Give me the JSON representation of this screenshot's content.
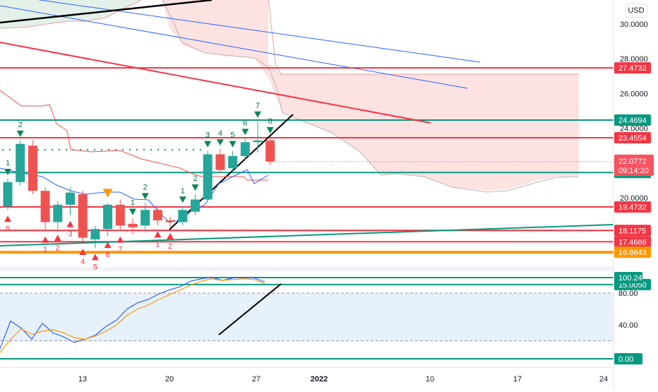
{
  "currency_label": "USD",
  "colors": {
    "green_line": "#089981",
    "red_line": "#f23645",
    "orange_line": "#ff9800",
    "blue_line": "#2962ff",
    "bull": "#26a69a",
    "bear": "#ef5350",
    "cloud": "#fde2e2",
    "cloud_green": "#e3f1e9",
    "rsi_band": "#e6f1fb"
  },
  "chart_data": [
    {
      "type": "candlestick",
      "title": "",
      "ylim": [
        14.85,
        31.2
      ],
      "price_ticks": [
        "30.0000",
        "28.0000",
        "26.0000",
        "24.0000",
        "20.0000"
      ],
      "x_ticks": [
        "13",
        "20",
        "27",
        "2022",
        "10",
        "17",
        "24"
      ],
      "price_tags": [
        {
          "value": "27.4732",
          "color": "red"
        },
        {
          "value": "24.4694",
          "color": "green"
        },
        {
          "value": "23.4554",
          "color": "red"
        },
        {
          "value": "21.4552",
          "color": "green"
        },
        {
          "value": "19.4732",
          "color": "red"
        },
        {
          "value": "18.1175",
          "color": "red"
        },
        {
          "value": "17.4686",
          "color": "red"
        },
        {
          "value": "16.8643",
          "color": "orange"
        },
        {
          "value": "15.0050",
          "color": "green"
        }
      ],
      "current_price": {
        "value": "22.0772",
        "countdown": "09:14:20"
      },
      "candles": [
        {
          "date": "Dec 07",
          "open": 19.5,
          "high": 21.1,
          "low": 19.3,
          "close": 20.9
        },
        {
          "date": "Dec 08",
          "open": 20.9,
          "high": 23.3,
          "low": 20.7,
          "close": 23.1
        },
        {
          "date": "Dec 09",
          "open": 23.0,
          "high": 23.3,
          "low": 20.2,
          "close": 20.4
        },
        {
          "date": "Dec 10",
          "open": 20.4,
          "high": 20.6,
          "low": 18.1,
          "close": 18.6
        },
        {
          "date": "Dec 11",
          "open": 18.6,
          "high": 19.8,
          "low": 18.2,
          "close": 19.6
        },
        {
          "date": "Dec 12",
          "open": 19.6,
          "high": 20.6,
          "low": 19.0,
          "close": 20.3
        },
        {
          "date": "Dec 13",
          "open": 20.2,
          "high": 20.4,
          "low": 17.4,
          "close": 17.7
        },
        {
          "date": "Dec 14",
          "open": 17.6,
          "high": 18.4,
          "low": 17.1,
          "close": 18.2
        },
        {
          "date": "Dec 15",
          "open": 18.2,
          "high": 19.7,
          "low": 17.8,
          "close": 19.6
        },
        {
          "date": "Dec 16",
          "open": 19.6,
          "high": 19.9,
          "low": 18.1,
          "close": 18.4
        },
        {
          "date": "Dec 17",
          "open": 18.5,
          "high": 18.8,
          "low": 17.9,
          "close": 18.3
        },
        {
          "date": "Dec 18",
          "open": 18.4,
          "high": 19.7,
          "low": 18.0,
          "close": 19.3
        },
        {
          "date": "Dec 19",
          "open": 19.3,
          "high": 19.5,
          "low": 18.4,
          "close": 18.7
        },
        {
          "date": "Dec 20",
          "open": 18.7,
          "high": 18.9,
          "low": 18.3,
          "close": 18.6
        },
        {
          "date": "Dec 21",
          "open": 18.6,
          "high": 19.5,
          "low": 18.4,
          "close": 19.3
        },
        {
          "date": "Dec 22",
          "open": 19.2,
          "high": 20.2,
          "low": 19.0,
          "close": 19.9
        },
        {
          "date": "Dec 23",
          "open": 19.9,
          "high": 22.7,
          "low": 19.8,
          "close": 22.5
        },
        {
          "date": "Dec 24",
          "open": 22.5,
          "high": 22.8,
          "low": 21.4,
          "close": 21.6
        },
        {
          "date": "Dec 25",
          "open": 21.7,
          "high": 22.7,
          "low": 21.5,
          "close": 22.4
        },
        {
          "date": "Dec 26",
          "open": 22.4,
          "high": 23.4,
          "low": 22.2,
          "close": 23.2
        },
        {
          "date": "Dec 27",
          "open": 23.2,
          "high": 24.4,
          "low": 22.6,
          "close": 23.3
        },
        {
          "date": "Dec 28",
          "open": 23.3,
          "high": 23.5,
          "low": 21.9,
          "close": 22.08
        }
      ],
      "signals": [
        {
          "date": "Dec 07",
          "label": "6",
          "dir": "down",
          "near": "low"
        },
        {
          "date": "Dec 07",
          "label": "1",
          "dir": "up",
          "near": "high"
        },
        {
          "date": "Dec 08",
          "label": "2",
          "dir": "up",
          "near": "high"
        },
        {
          "date": "Dec 10",
          "label": "1",
          "dir": "down",
          "near": "low"
        },
        {
          "date": "Dec 11",
          "label": "2",
          "dir": "down",
          "near": "low"
        },
        {
          "date": "Dec 12",
          "label": "3",
          "dir": "down",
          "near": "low"
        },
        {
          "date": "Dec 13",
          "label": "4",
          "dir": "down",
          "near": "low"
        },
        {
          "date": "Dec 14",
          "label": "5",
          "dir": "down",
          "near": "low"
        },
        {
          "date": "Dec 15",
          "label": "6",
          "dir": "down",
          "near": "low"
        },
        {
          "date": "Dec 16",
          "label": "7",
          "dir": "down",
          "near": "low"
        },
        {
          "date": "Dec 15",
          "label": "",
          "dir": "setup",
          "near": "high"
        },
        {
          "date": "Dec 17",
          "label": "1",
          "dir": "up",
          "near": "high"
        },
        {
          "date": "Dec 18",
          "label": "2",
          "dir": "up",
          "near": "high"
        },
        {
          "date": "Dec 19",
          "label": "1",
          "dir": "down",
          "near": "low"
        },
        {
          "date": "Dec 20",
          "label": "2",
          "dir": "down",
          "near": "low"
        },
        {
          "date": "Dec 21",
          "label": "1",
          "dir": "up",
          "near": "high"
        },
        {
          "date": "Dec 22",
          "label": "2",
          "dir": "up",
          "near": "high"
        },
        {
          "date": "Dec 23",
          "label": "3",
          "dir": "up",
          "near": "high"
        },
        {
          "date": "Dec 24",
          "label": "4",
          "dir": "up",
          "near": "high"
        },
        {
          "date": "Dec 25",
          "label": "5",
          "dir": "up",
          "near": "high"
        },
        {
          "date": "Dec 26",
          "label": "6",
          "dir": "up",
          "near": "high"
        },
        {
          "date": "Dec 27",
          "label": "7",
          "dir": "up",
          "near": "high"
        },
        {
          "date": "Dec 28",
          "label": "8",
          "dir": "up",
          "near": "high"
        }
      ]
    },
    {
      "type": "line",
      "title": "",
      "ylim": [
        0,
        100
      ],
      "y_ticks": [
        "80.00",
        "40.00"
      ],
      "value_tags": [
        {
          "value": "100.24",
          "color": "green"
        },
        {
          "value": "0.00",
          "color": "green"
        }
      ],
      "band": [
        20,
        80
      ],
      "series": [
        {
          "values": [
            10,
            45,
            36,
            22,
            42,
            30,
            25,
            18,
            22,
            27,
            38,
            46,
            60,
            68,
            72,
            79,
            84,
            88,
            95,
            98,
            100,
            96,
            99,
            100,
            99,
            94
          ]
        },
        {
          "values": [
            5,
            22,
            35,
            28,
            32,
            34,
            30,
            24,
            22,
            26,
            32,
            40,
            52,
            60,
            65,
            72,
            78,
            84,
            90,
            95,
            98,
            96,
            97,
            98,
            97,
            92
          ]
        }
      ]
    }
  ]
}
